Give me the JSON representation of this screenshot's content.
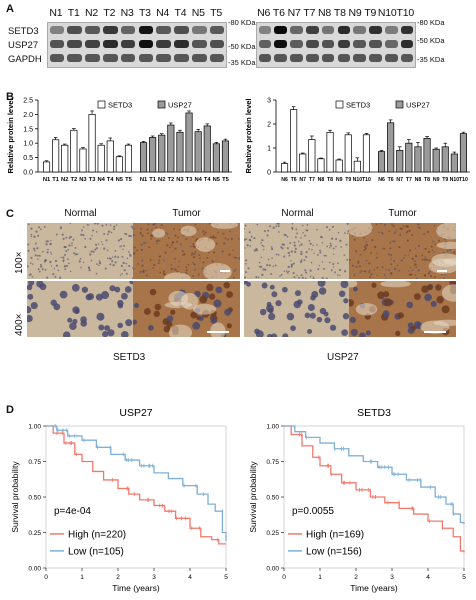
{
  "panel_labels": {
    "a": "A",
    "b": "B",
    "c": "C",
    "d": "D"
  },
  "blot_left": {
    "lanes": [
      "N1",
      "T1",
      "N2",
      "T2",
      "N3",
      "T3",
      "N4",
      "T4",
      "N5",
      "T5"
    ],
    "rows": [
      {
        "label": "SETD3",
        "marker": "-80 KDa",
        "levels": [
          0.35,
          1.1,
          0.95,
          1.45,
          0.8,
          2.0,
          0.95,
          1.1,
          0.5,
          0.95
        ]
      },
      {
        "label": "USP27",
        "marker": "-50 KDa",
        "levels": [
          1.05,
          1.2,
          1.3,
          1.65,
          1.35,
          2.05,
          1.4,
          1.6,
          1.0,
          1.1
        ]
      },
      {
        "label": "GAPDH",
        "marker": "-35 KDa",
        "levels": [
          1,
          1,
          1,
          1,
          1,
          1,
          1,
          1,
          1,
          1
        ]
      }
    ]
  },
  "blot_right": {
    "lanes": [
      "N6",
      "T6",
      "N7",
      "T7",
      "N8",
      "T8",
      "N9",
      "T9",
      "N10",
      "T10"
    ],
    "rows": [
      {
        "marker": "-80 KDa",
        "levels": [
          0.35,
          2.6,
          0.75,
          1.35,
          0.55,
          1.65,
          0.5,
          1.55,
          0.45,
          1.55
        ]
      },
      {
        "marker": "-50 KDa",
        "levels": [
          0.85,
          2.05,
          0.9,
          1.2,
          1.05,
          1.4,
          0.95,
          1.05,
          0.75,
          1.6
        ]
      },
      {
        "marker": "-35 KDa",
        "levels": [
          1,
          1,
          1,
          1,
          1,
          1,
          1,
          1,
          1,
          1
        ]
      }
    ]
  },
  "chart_data": [
    {
      "type": "bar",
      "ylabel": "Relative protein level",
      "ylim": [
        0,
        2.5
      ],
      "yticks": [
        "0.0",
        "0.5",
        "1.0",
        "1.5",
        "2.0",
        "2.5"
      ],
      "legend": "top-center",
      "groups": [
        {
          "name": "SETD3",
          "color": "#ffffff",
          "categories": [
            "N1",
            "T1",
            "N2",
            "T2",
            "N3",
            "T3",
            "N4",
            "T4",
            "N5",
            "T5"
          ],
          "values": [
            0.35,
            1.12,
            0.93,
            1.45,
            0.8,
            2.0,
            0.93,
            1.08,
            0.53,
            0.93
          ],
          "errors": [
            0.04,
            0.08,
            0.04,
            0.06,
            0.05,
            0.12,
            0.05,
            0.1,
            0.03,
            0.04
          ]
        },
        {
          "name": "USP27",
          "color": "#9b9b9b",
          "categories": [
            "N1",
            "T1",
            "N2",
            "T2",
            "N3",
            "T3",
            "N4",
            "T4",
            "N5",
            "T5"
          ],
          "values": [
            1.02,
            1.2,
            1.28,
            1.63,
            1.38,
            2.05,
            1.4,
            1.6,
            0.98,
            1.08
          ],
          "errors": [
            0.04,
            0.05,
            0.05,
            0.07,
            0.07,
            0.07,
            0.08,
            0.07,
            0.05,
            0.06
          ]
        }
      ]
    },
    {
      "type": "bar",
      "ylabel": "Relative protein level",
      "ylim": [
        0,
        3
      ],
      "yticks": [
        "0",
        "1",
        "2",
        "3"
      ],
      "legend": "top-center",
      "groups": [
        {
          "name": "SETD3",
          "color": "#ffffff",
          "categories": [
            "N6",
            "T6",
            "N7",
            "T7",
            "N8",
            "T8",
            "N9",
            "T9",
            "N10",
            "T10"
          ],
          "values": [
            0.35,
            2.6,
            0.75,
            1.35,
            0.55,
            1.65,
            0.5,
            1.55,
            0.45,
            1.55
          ],
          "errors": [
            0.06,
            0.12,
            0.04,
            0.15,
            0.03,
            0.09,
            0.04,
            0.08,
            0.14,
            0.06
          ]
        },
        {
          "name": "USP27",
          "color": "#9b9b9b",
          "categories": [
            "N6",
            "T6",
            "N7",
            "T7",
            "N8",
            "T8",
            "N9",
            "T9",
            "N10",
            "T10"
          ],
          "values": [
            0.85,
            2.05,
            0.9,
            1.2,
            1.05,
            1.4,
            0.95,
            1.05,
            0.75,
            1.6
          ],
          "errors": [
            0.05,
            0.12,
            0.15,
            0.15,
            0.18,
            0.08,
            0.05,
            0.15,
            0.08,
            0.06
          ]
        }
      ]
    },
    {
      "type": "line",
      "title": "USP27",
      "xlabel": "Time (years)",
      "ylabel": "Survival probability",
      "xlim": [
        0,
        5
      ],
      "ylim": [
        0,
        1
      ],
      "xticks": [
        "0",
        "1",
        "2",
        "3",
        "4",
        "5"
      ],
      "yticks": [
        "0.00",
        "0.25",
        "0.50",
        "0.75",
        "1.00"
      ],
      "annotation": "p=4e-04",
      "legend": "bottom-left",
      "series": [
        {
          "name": "High (n=220)",
          "color": "#f07a6a",
          "x": [
            0,
            0.2,
            0.5,
            0.8,
            1.0,
            1.3,
            1.6,
            2.0,
            2.3,
            2.6,
            3.0,
            3.3,
            3.6,
            4.0,
            4.3,
            4.6,
            4.8,
            5.0
          ],
          "y": [
            1.0,
            0.95,
            0.88,
            0.8,
            0.75,
            0.68,
            0.62,
            0.56,
            0.52,
            0.48,
            0.44,
            0.4,
            0.35,
            0.28,
            0.22,
            0.2,
            0.17,
            0.17
          ]
        },
        {
          "name": "Low (n=105)",
          "color": "#7fb0d8",
          "x": [
            0,
            0.3,
            0.6,
            1.0,
            1.4,
            1.8,
            2.2,
            2.6,
            3.0,
            3.4,
            3.8,
            4.2,
            4.5,
            4.7,
            4.9,
            5.0
          ],
          "y": [
            1.0,
            0.97,
            0.93,
            0.9,
            0.85,
            0.8,
            0.76,
            0.72,
            0.67,
            0.63,
            0.58,
            0.52,
            0.45,
            0.4,
            0.25,
            0.19
          ]
        }
      ]
    },
    {
      "type": "line",
      "title": "SETD3",
      "xlabel": "Time (years)",
      "ylabel": "Survival probability",
      "xlim": [
        0,
        5
      ],
      "ylim": [
        0,
        1
      ],
      "xticks": [
        "0",
        "1",
        "2",
        "3",
        "4",
        "5"
      ],
      "yticks": [
        "0.00",
        "0.25",
        "0.50",
        "0.75",
        "1.00"
      ],
      "annotation": "p=0.0055",
      "legend": "bottom-left",
      "series": [
        {
          "name": "High (n=169)",
          "color": "#f07a6a",
          "x": [
            0,
            0.2,
            0.5,
            0.8,
            1.0,
            1.3,
            1.6,
            2.0,
            2.4,
            2.8,
            3.2,
            3.6,
            4.0,
            4.4,
            4.7,
            4.9,
            5.0
          ],
          "y": [
            1.0,
            0.94,
            0.86,
            0.78,
            0.72,
            0.66,
            0.6,
            0.55,
            0.5,
            0.46,
            0.42,
            0.38,
            0.33,
            0.28,
            0.22,
            0.12,
            0.11
          ]
        },
        {
          "name": "Low (n=156)",
          "color": "#7fb0d8",
          "x": [
            0,
            0.3,
            0.6,
            1.0,
            1.4,
            1.8,
            2.2,
            2.6,
            3.0,
            3.4,
            3.8,
            4.2,
            4.5,
            4.7,
            4.9,
            5.0
          ],
          "y": [
            1.0,
            0.96,
            0.92,
            0.88,
            0.84,
            0.79,
            0.75,
            0.71,
            0.66,
            0.62,
            0.57,
            0.5,
            0.45,
            0.38,
            0.32,
            0.31
          ]
        }
      ]
    }
  ],
  "ihc": {
    "left_gene": "SETD3",
    "right_gene": "USP27",
    "headers": [
      "Normal",
      "Tumor"
    ],
    "magnifications": [
      "100×",
      "400×"
    ],
    "colors": {
      "normal": "#c9b89e",
      "tumor": "#a8754a",
      "tumor_dark": "#6b3a1e",
      "nuclei": "#4a4a6e"
    }
  }
}
